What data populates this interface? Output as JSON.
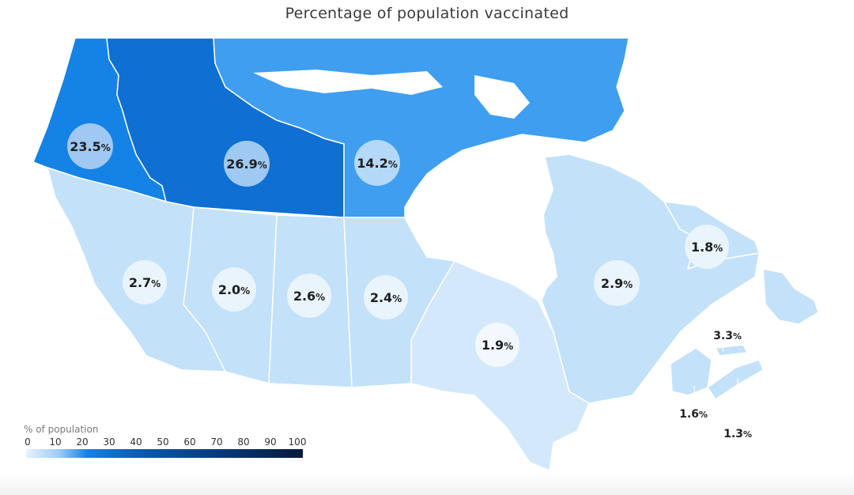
{
  "title": "Percentage of population vaccinated",
  "colors": {
    "territory_yt": "#1582e6",
    "territory_nt": "#0f6fd3",
    "territory_nu": "#3f9ef0",
    "province_light": "#c3e1f9",
    "province_lighter": "#d3e9fb",
    "bubble_light": "#eaf4fd",
    "bubble_dark": "#9fc9f2"
  },
  "regions": [
    {
      "id": "yt",
      "value": "23.5",
      "unit": "%"
    },
    {
      "id": "nt",
      "value": "26.9",
      "unit": "%"
    },
    {
      "id": "nu",
      "value": "14.2",
      "unit": "%"
    },
    {
      "id": "bc",
      "value": "2.7",
      "unit": "%"
    },
    {
      "id": "ab",
      "value": "2.0",
      "unit": "%"
    },
    {
      "id": "sk",
      "value": "2.6",
      "unit": "%"
    },
    {
      "id": "mb",
      "value": "2.4",
      "unit": "%"
    },
    {
      "id": "on",
      "value": "1.9",
      "unit": "%"
    },
    {
      "id": "qc",
      "value": "2.9",
      "unit": "%"
    },
    {
      "id": "nl",
      "value": "1.8",
      "unit": "%"
    },
    {
      "id": "pe",
      "value": "3.3",
      "unit": "%"
    },
    {
      "id": "nb",
      "value": "1.6",
      "unit": "%"
    },
    {
      "id": "ns",
      "value": "1.3",
      "unit": "%"
    }
  ],
  "legend": {
    "title": "% of population",
    "ticks": [
      "0",
      "10",
      "20",
      "30",
      "40",
      "50",
      "60",
      "70",
      "80",
      "90",
      "100"
    ]
  }
}
